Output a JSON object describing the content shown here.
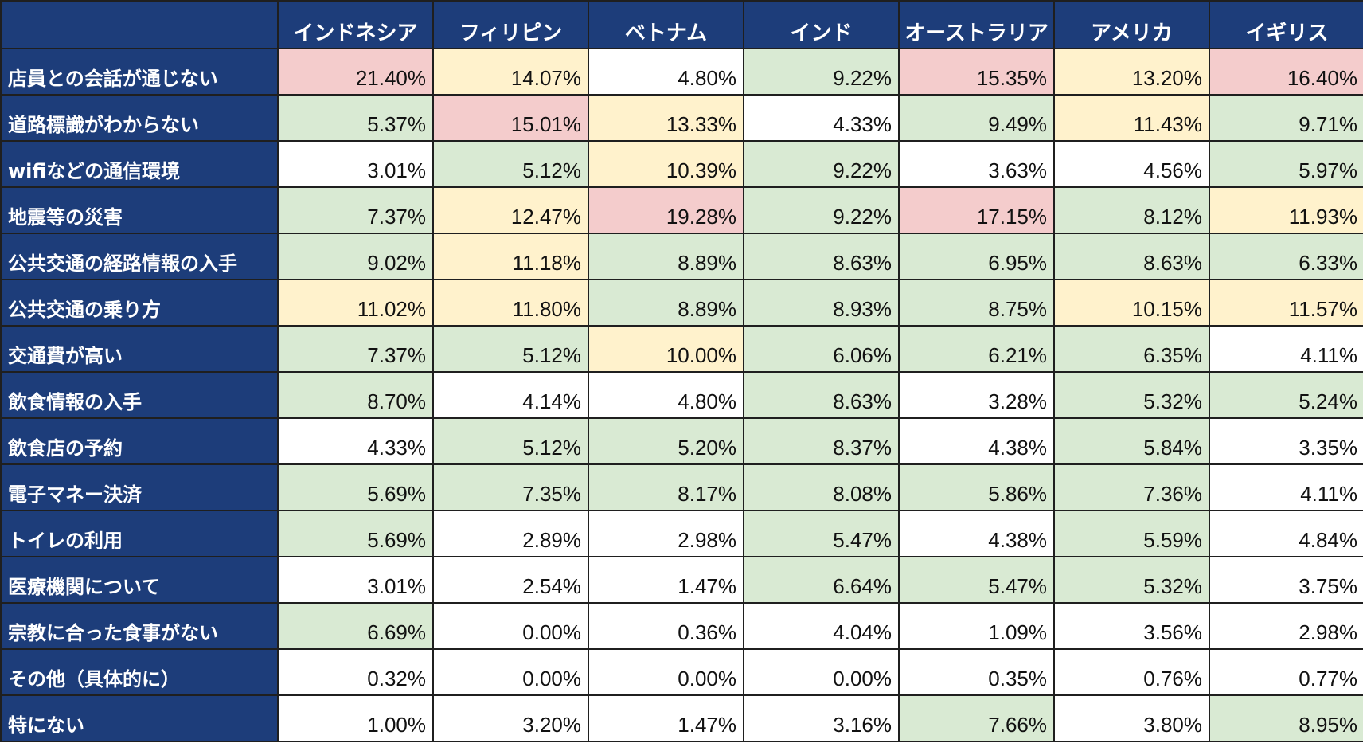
{
  "columns": [
    "インドネシア",
    "フィリピン",
    "ベトナム",
    "インド",
    "オーストラリア",
    "アメリカ",
    "イギリス"
  ],
  "highlight_colors": {
    "red": "#f4cccc",
    "yellow": "#fff2cc",
    "green": "#d9ead3",
    "none": "#ffffff",
    "header": "#1d3d7a"
  },
  "rows": [
    {
      "label": "店員との会話が通じない",
      "values": [
        "21.40%",
        "14.07%",
        "4.80%",
        "9.22%",
        "15.35%",
        "13.20%",
        "16.40%"
      ],
      "highlight": [
        "red",
        "yellow",
        "none",
        "green",
        "red",
        "yellow",
        "red"
      ]
    },
    {
      "label": "道路標識がわからない",
      "values": [
        "5.37%",
        "15.01%",
        "13.33%",
        "4.33%",
        "9.49%",
        "11.43%",
        "9.71%"
      ],
      "highlight": [
        "green",
        "red",
        "yellow",
        "none",
        "green",
        "yellow",
        "green"
      ]
    },
    {
      "label": "wifiなどの通信環境",
      "values": [
        "3.01%",
        "5.12%",
        "10.39%",
        "9.22%",
        "3.63%",
        "4.56%",
        "5.97%"
      ],
      "highlight": [
        "none",
        "green",
        "yellow",
        "green",
        "none",
        "none",
        "green"
      ]
    },
    {
      "label": "地震等の災害",
      "values": [
        "7.37%",
        "12.47%",
        "19.28%",
        "9.22%",
        "17.15%",
        "8.12%",
        "11.93%"
      ],
      "highlight": [
        "green",
        "yellow",
        "red",
        "green",
        "red",
        "green",
        "yellow"
      ]
    },
    {
      "label": "公共交通の経路情報の入手",
      "values": [
        "9.02%",
        "11.18%",
        "8.89%",
        "8.63%",
        "6.95%",
        "8.63%",
        "6.33%"
      ],
      "highlight": [
        "green",
        "yellow",
        "green",
        "green",
        "green",
        "green",
        "green"
      ]
    },
    {
      "label": "公共交通の乗り方",
      "values": [
        "11.02%",
        "11.80%",
        "8.89%",
        "8.93%",
        "8.75%",
        "10.15%",
        "11.57%"
      ],
      "highlight": [
        "yellow",
        "yellow",
        "green",
        "green",
        "green",
        "yellow",
        "yellow"
      ]
    },
    {
      "label": "交通費が高い",
      "values": [
        "7.37%",
        "5.12%",
        "10.00%",
        "6.06%",
        "6.21%",
        "6.35%",
        "4.11%"
      ],
      "highlight": [
        "green",
        "green",
        "yellow",
        "green",
        "green",
        "green",
        "none"
      ]
    },
    {
      "label": "飲食情報の入手",
      "values": [
        "8.70%",
        "4.14%",
        "4.80%",
        "8.63%",
        "3.28%",
        "5.32%",
        "5.24%"
      ],
      "highlight": [
        "green",
        "none",
        "none",
        "green",
        "none",
        "green",
        "green"
      ]
    },
    {
      "label": "飲食店の予約",
      "values": [
        "4.33%",
        "5.12%",
        "5.20%",
        "8.37%",
        "4.38%",
        "5.84%",
        "3.35%"
      ],
      "highlight": [
        "none",
        "green",
        "green",
        "green",
        "none",
        "green",
        "none"
      ]
    },
    {
      "label": "電子マネー決済",
      "values": [
        "5.69%",
        "7.35%",
        "8.17%",
        "8.08%",
        "5.86%",
        "7.36%",
        "4.11%"
      ],
      "highlight": [
        "green",
        "green",
        "green",
        "green",
        "green",
        "green",
        "none"
      ]
    },
    {
      "label": "トイレの利用",
      "values": [
        "5.69%",
        "2.89%",
        "2.98%",
        "5.47%",
        "4.38%",
        "5.59%",
        "4.84%"
      ],
      "highlight": [
        "green",
        "none",
        "none",
        "green",
        "none",
        "green",
        "none"
      ]
    },
    {
      "label": "医療機関について",
      "values": [
        "3.01%",
        "2.54%",
        "1.47%",
        "6.64%",
        "5.47%",
        "5.32%",
        "3.75%"
      ],
      "highlight": [
        "none",
        "none",
        "none",
        "green",
        "green",
        "green",
        "none"
      ]
    },
    {
      "label": "宗教に合った食事がない",
      "values": [
        "6.69%",
        "0.00%",
        "0.36%",
        "4.04%",
        "1.09%",
        "3.56%",
        "2.98%"
      ],
      "highlight": [
        "green",
        "none",
        "none",
        "none",
        "none",
        "none",
        "none"
      ]
    },
    {
      "label": "その他（具体的に）",
      "values": [
        "0.32%",
        "0.00%",
        "0.00%",
        "0.00%",
        "0.35%",
        "0.76%",
        "0.77%"
      ],
      "highlight": [
        "none",
        "none",
        "none",
        "none",
        "none",
        "none",
        "none"
      ]
    },
    {
      "label": "特にない",
      "values": [
        "1.00%",
        "3.20%",
        "1.47%",
        "3.16%",
        "7.66%",
        "3.80%",
        "8.95%"
      ],
      "highlight": [
        "none",
        "none",
        "none",
        "none",
        "green",
        "none",
        "green"
      ]
    }
  ]
}
